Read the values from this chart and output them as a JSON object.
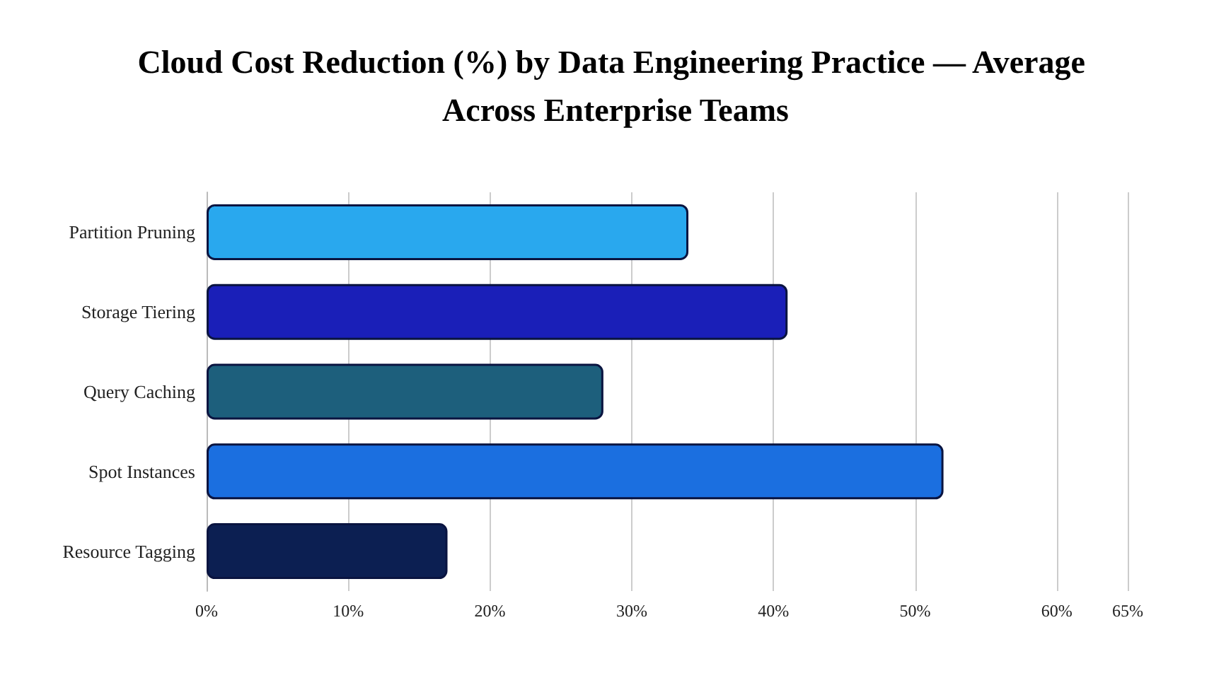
{
  "chart_data": {
    "type": "bar",
    "orientation": "horizontal",
    "title": "Cloud Cost Reduction (%) by Data Engineering Practice — Average Across Enterprise Teams",
    "categories": [
      "Partition Pruning",
      "Storage Tiering",
      "Query Caching",
      "Spot Instances",
      "Resource Tagging"
    ],
    "values": [
      34,
      41,
      28,
      52,
      17
    ],
    "colors": [
      "#29a8ee",
      "#1a1fb8",
      "#1d5f7c",
      "#1b6fe0",
      "#0c1f52"
    ],
    "xlim": [
      0,
      65
    ],
    "xticks": [
      {
        "value": 0,
        "label": "0%"
      },
      {
        "value": 10,
        "label": "10%"
      },
      {
        "value": 20,
        "label": "20%"
      },
      {
        "value": 30,
        "label": "30%"
      },
      {
        "value": 40,
        "label": "40%"
      },
      {
        "value": 50,
        "label": "50%"
      },
      {
        "value": 60,
        "label": "60%"
      },
      {
        "value": 65,
        "label": "65%"
      }
    ],
    "grid": "x"
  }
}
